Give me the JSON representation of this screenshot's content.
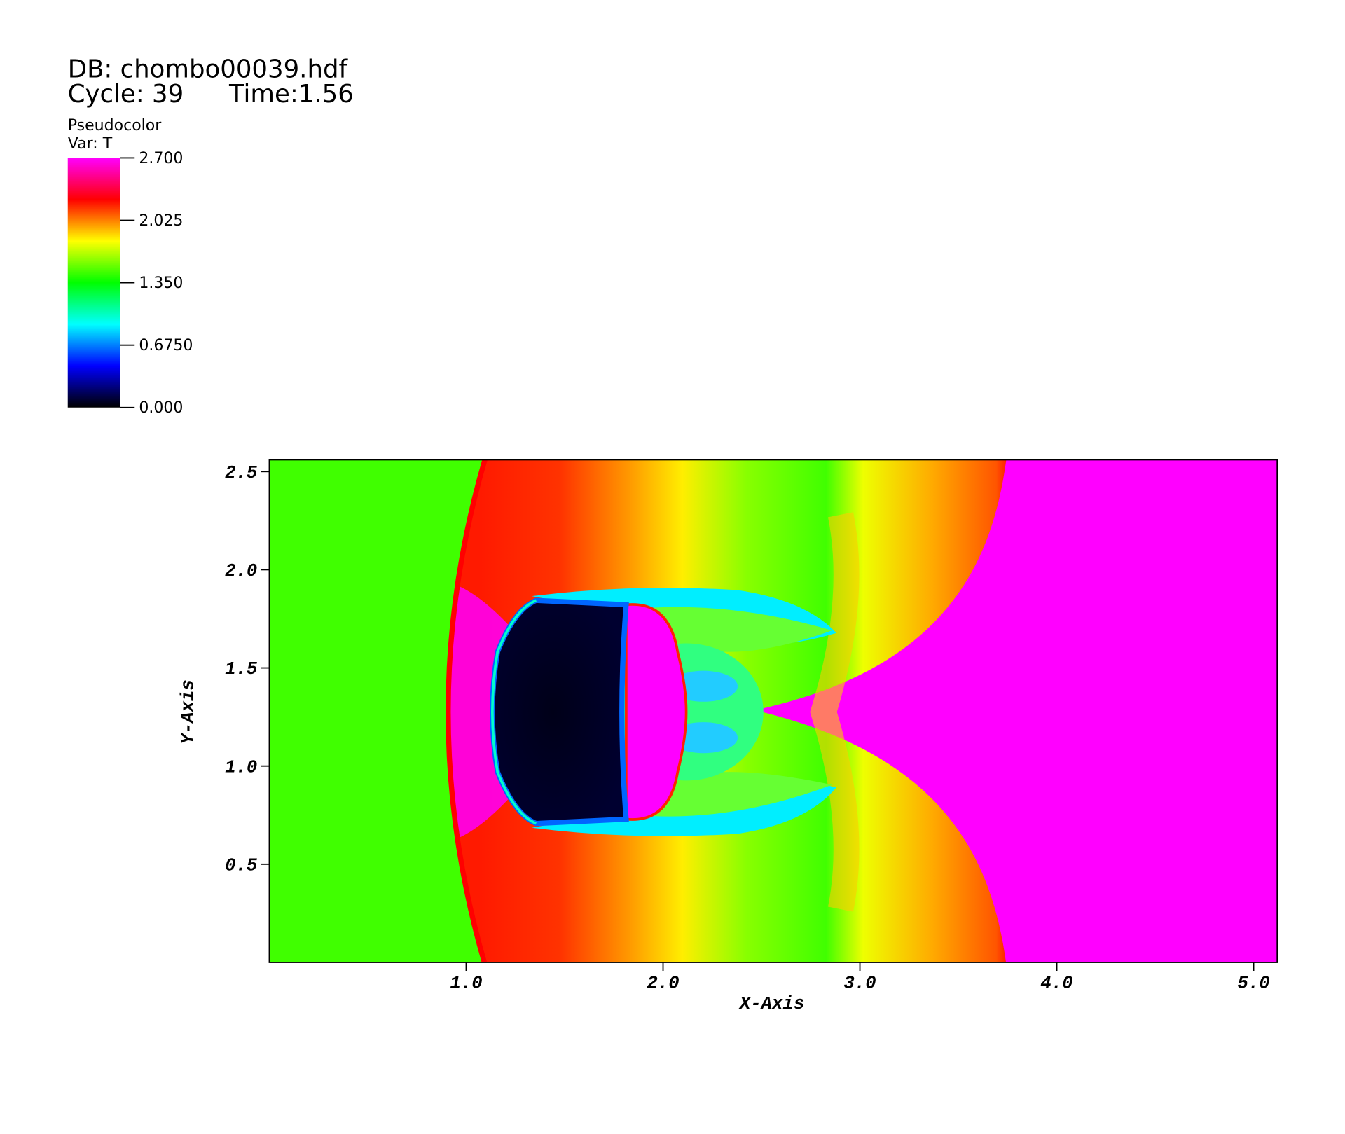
{
  "chart_data": {
    "type": "pseudocolor",
    "database": "DB: chombo00039.hdf",
    "cycle": "Cycle: 39",
    "time": "Time:1.56",
    "legend_title": "Pseudocolor",
    "variable": "Var: T",
    "colorbar": {
      "lim": [
        0,
        2.7
      ],
      "ticks": [
        {
          "value": 2.7,
          "label": "2.700"
        },
        {
          "value": 2.025,
          "label": "2.025"
        },
        {
          "value": 1.35,
          "label": "1.350"
        },
        {
          "value": 0.675,
          "label": "0.6750"
        },
        {
          "value": 0,
          "label": "0.000"
        }
      ],
      "colors": [
        "#000000",
        "#0000ff",
        "#00ffff",
        "#00ff00",
        "#ffff00",
        "#ff0000",
        "#ff00ff"
      ]
    },
    "xlabel": "X-Axis",
    "ylabel": "Y-Axis",
    "xlim": [
      0,
      5.12
    ],
    "ylim": [
      0,
      2.56
    ],
    "xticks": [
      {
        "value": 1,
        "label": "1.0"
      },
      {
        "value": 2,
        "label": "2.0"
      },
      {
        "value": 3,
        "label": "3.0"
      },
      {
        "value": 4,
        "label": "4.0"
      },
      {
        "value": 5,
        "label": "5.0"
      }
    ],
    "yticks": [
      0.5,
      {
        "value": 1,
        "label": "1.0"
      },
      1.5,
      {
        "value": 2,
        "label": "2.0"
      },
      2.5
    ]
  }
}
